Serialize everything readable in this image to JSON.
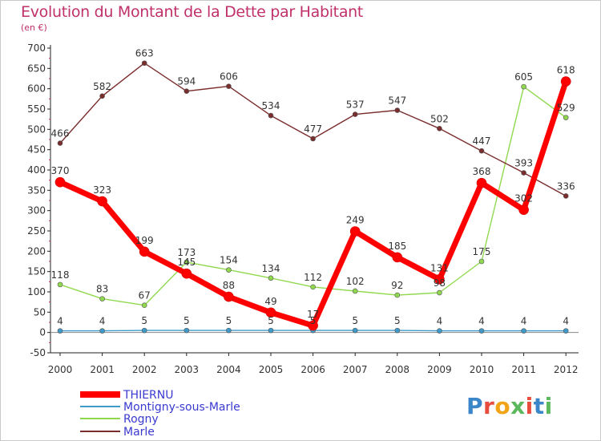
{
  "title": "Evolution du Montant de la Dette par Habitant",
  "subtitle": "(en €)",
  "logo": {
    "letters": [
      "P",
      "r",
      "o",
      "x",
      "i",
      "t",
      "i"
    ],
    "colors": [
      "#3a86c8",
      "#e84c3d",
      "#f2a417",
      "#5cb85c",
      "#e84c3d",
      "#3a86c8",
      "#5cb85c"
    ]
  },
  "chart_data": {
    "type": "line",
    "title": "Evolution du Montant de la Dette par Habitant",
    "subtitle": "(en €)",
    "x": [
      "2000",
      "2001",
      "2002",
      "2003",
      "2004",
      "2005",
      "2006",
      "2007",
      "2008",
      "2009",
      "2010",
      "2011",
      "2012"
    ],
    "ylim": [
      -50,
      700
    ],
    "yticks": [
      "-50",
      "0",
      "50",
      "100",
      "150",
      "200",
      "250",
      "300",
      "350",
      "400",
      "450",
      "500",
      "550",
      "600",
      "650",
      "700"
    ],
    "grid": false,
    "legend_position": "bottom-left",
    "series": [
      {
        "name": "THIERNU",
        "color": "#ff0000",
        "values": [
          370,
          323,
          199,
          145,
          88,
          49,
          17,
          249,
          185,
          131,
          368,
          302,
          618
        ],
        "labels": [
          "370",
          "323",
          "199",
          "145",
          "88",
          "49",
          "17",
          "249",
          "185",
          "131",
          "368",
          "302",
          "618"
        ]
      },
      {
        "name": "Montigny-sous-Marle",
        "color": "#3f9ac9",
        "values": [
          4,
          4,
          5,
          5,
          5,
          5,
          5,
          5,
          5,
          4,
          4,
          4,
          4
        ],
        "labels": [
          "4",
          "4",
          "5",
          "5",
          "5",
          "5",
          "5",
          "5",
          "5",
          "4",
          "4",
          "4",
          "4"
        ]
      },
      {
        "name": "Rogny",
        "color": "#90d94f",
        "values": [
          118,
          83,
          67,
          173,
          154,
          134,
          112,
          102,
          92,
          98,
          175,
          605,
          529
        ],
        "labels": [
          "118",
          "83",
          "67",
          "173",
          "154",
          "134",
          "112",
          "102",
          "92",
          "98",
          "175",
          "605",
          "529"
        ]
      },
      {
        "name": "Marle",
        "color": "#7a2d2d",
        "values": [
          466,
          582,
          663,
          594,
          606,
          534,
          477,
          537,
          547,
          502,
          447,
          393,
          336
        ],
        "labels": [
          "466",
          "582",
          "663",
          "594",
          "606",
          "534",
          "477",
          "537",
          "547",
          "502",
          "447",
          "393",
          "336"
        ]
      }
    ]
  }
}
